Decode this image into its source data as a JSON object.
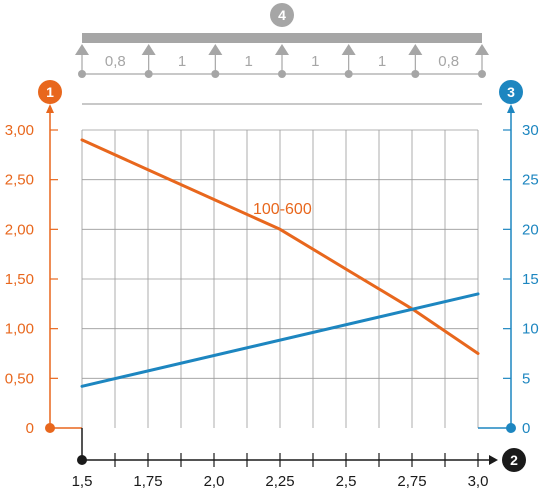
{
  "badges": {
    "left_axis": "1",
    "x_axis": "2",
    "right_axis": "3",
    "span_diagram": "4"
  },
  "span_diagram": {
    "spans": [
      "0,8",
      "1",
      "1",
      "1",
      "1",
      "0,8"
    ]
  },
  "colors": {
    "orange": "#e8671d",
    "blue": "#1d86c0",
    "grey": "#a6a6a6",
    "dark": "#1a1a1a",
    "grid": "#9a9a9a"
  },
  "chart_data": {
    "type": "line",
    "x_ticks": [
      "1,5",
      "1,75",
      "2,0",
      "2,25",
      "2,5",
      "2,75",
      "3,0"
    ],
    "xlim": [
      1.5,
      3.0
    ],
    "y_left": {
      "ticks": [
        "0",
        "0,50",
        "1,00",
        "1,50",
        "2,00",
        "2,50",
        "3,00"
      ],
      "ylim": [
        0,
        3.0
      ],
      "color": "#e8671d"
    },
    "y_right": {
      "ticks": [
        "0",
        "5",
        "10",
        "15",
        "20",
        "25",
        "30"
      ],
      "ylim": [
        0,
        30
      ],
      "color": "#1d86c0"
    },
    "grid": true,
    "series": [
      {
        "name": "100-600",
        "axis": "left",
        "color": "#e8671d",
        "x": [
          1.5,
          1.75,
          2.0,
          2.25,
          2.5,
          2.75,
          3.0
        ],
        "y": [
          2.9,
          2.6,
          2.3,
          2.0,
          1.6,
          1.2,
          0.75
        ]
      },
      {
        "name": "",
        "axis": "right",
        "color": "#1d86c0",
        "x": [
          1.5,
          3.0
        ],
        "y": [
          4.2,
          13.5
        ]
      }
    ]
  }
}
